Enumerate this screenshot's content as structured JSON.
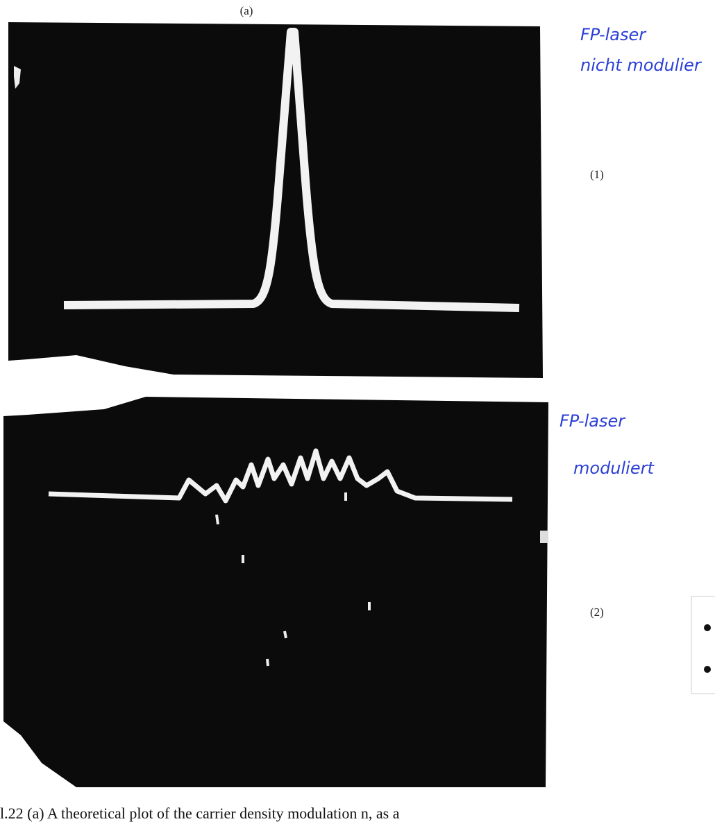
{
  "figure": {
    "label": "(a)",
    "panels": [
      {
        "label": "(1)",
        "note_lines": [
          "FP-laser",
          "nicht modulier"
        ]
      },
      {
        "label": "(2)",
        "note_lines": [
          "FP-laser",
          "moduliert"
        ]
      }
    ]
  },
  "caption": "l.22  (a) A theoretical plot of the carrier density modulation n, as a"
}
